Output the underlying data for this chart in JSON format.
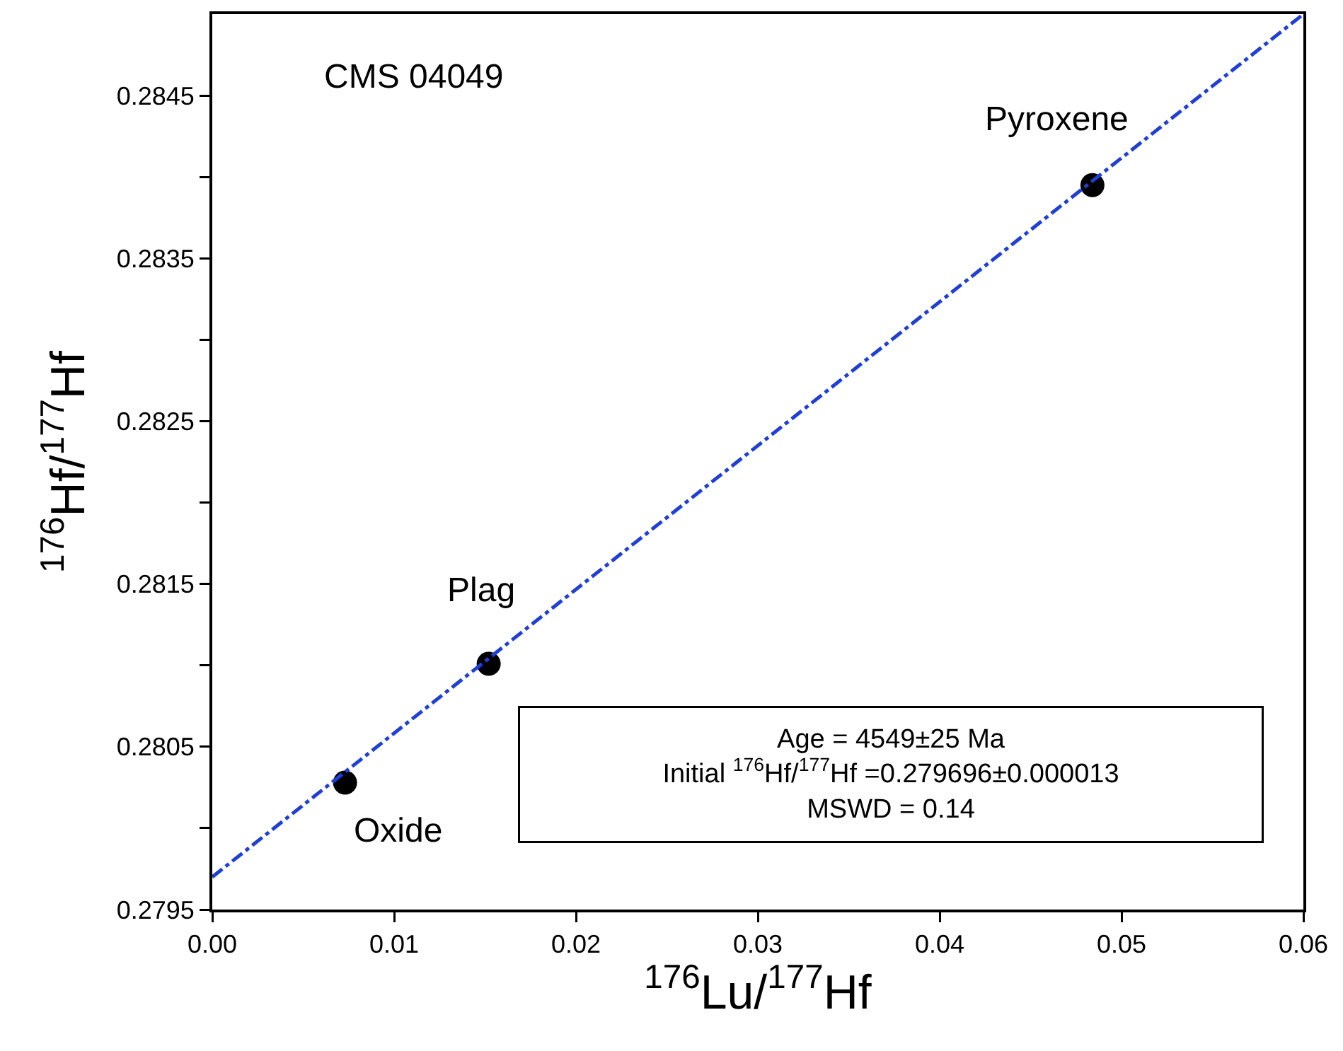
{
  "chart_data": {
    "type": "scatter",
    "xlabel": "$^{176}$Lu/$^{177}$Hf",
    "ylabel": "$^{176}$Hf/$^{177}$Hf",
    "series": [
      {
        "name": null,
        "color": "#000000",
        "marker": "circle",
        "x": [
          0.0073,
          0.0152,
          0.0484
        ],
        "values": [
          0.28028,
          0.28101,
          0.28395
        ]
      },
      {
        "type": "line",
        "color": "#1f3fd6",
        "marker": "none",
        "line_style": "dashed",
        "x": [
          0,
          0.06
        ],
        "values": [
          0.2797,
          0.285
        ]
      }
    ],
    "xlim": [
      0,
      0.06
    ],
    "ylim": [
      0.2795,
      0.285
    ],
    "xticks": [
      {
        "value": 0,
        "label": "0.00"
      },
      {
        "value": 0.01,
        "label": "0.01"
      },
      {
        "value": 0.02,
        "label": "0.02"
      },
      {
        "value": 0.03,
        "label": "0.03"
      },
      {
        "value": 0.04,
        "label": "0.04"
      },
      {
        "value": 0.05,
        "label": "0.05"
      },
      {
        "value": 0.06,
        "label": "0.06"
      }
    ],
    "yticks": [
      0.2795,
      {
        "value": 0.28,
        "label": null
      },
      0.2805,
      {
        "value": 0.281,
        "label": null
      },
      0.2815,
      {
        "value": 0.282,
        "label": null
      },
      0.2825,
      {
        "value": 0.283,
        "label": null
      },
      0.2835,
      {
        "value": 0.284,
        "label": null
      },
      0.2845
    ],
    "grid": false,
    "annotations": [
      "CMS 04049",
      {
        "text": "Oxide",
        "x": 0.0073,
        "y": 0.28028
      },
      {
        "text": "Plag",
        "x": 0.0152,
        "y": 0.28101
      },
      {
        "text": "Pyroxene",
        "x": 0.0484,
        "y": 0.28395
      },
      "Age = 4549±25 Ma\nInitial $^{176}$Hf/$^{177}$Hf =0.279696±0.000013\nMSWD = 0.14"
    ]
  }
}
